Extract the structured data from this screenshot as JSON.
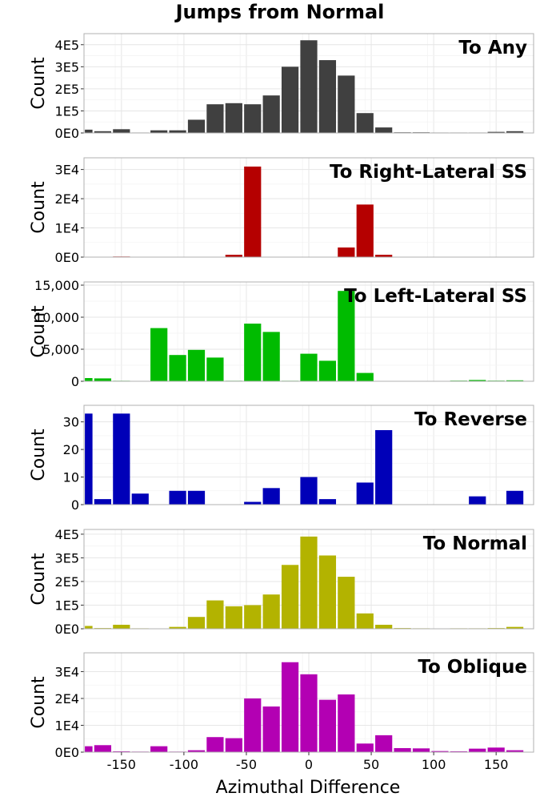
{
  "title": "Jumps from Normal",
  "xlabel": "Azimuthal Difference",
  "ylabel": "Count",
  "x_tick_labels": [
    "-150",
    "-100",
    "-50",
    "0",
    "50",
    "100",
    "150"
  ],
  "chart_data": [
    {
      "type": "bar",
      "title": "To Any",
      "color": "#404040",
      "xlim": [
        -180,
        180
      ],
      "ylim": [
        0,
        450000
      ],
      "bin_width": 15,
      "x": [
        -180,
        -165,
        -150,
        -135,
        -120,
        -105,
        -90,
        -75,
        -60,
        -45,
        -30,
        -15,
        0,
        15,
        30,
        45,
        60,
        75,
        90,
        105,
        120,
        135,
        150,
        165,
        180
      ],
      "values": [
        15000,
        8000,
        17000,
        2000,
        12000,
        12000,
        60000,
        130000,
        135000,
        130000,
        170000,
        300000,
        420000,
        330000,
        260000,
        90000,
        25000,
        3000,
        3000,
        2000,
        2000,
        2000,
        5000,
        8000,
        0
      ],
      "y_ticks": [
        0,
        100000,
        200000,
        300000,
        400000
      ],
      "y_tick_labels": [
        "0E0",
        "1E5",
        "2E5",
        "3E5",
        "4E5"
      ]
    },
    {
      "type": "bar",
      "title": "To Right-Lateral SS",
      "color": "#b50000",
      "xlim": [
        -180,
        180
      ],
      "ylim": [
        0,
        34000
      ],
      "bin_width": 15,
      "x": [
        -180,
        -165,
        -150,
        -135,
        -120,
        -105,
        -90,
        -75,
        -60,
        -45,
        -30,
        -15,
        0,
        15,
        30,
        45,
        60,
        75,
        90,
        105,
        120,
        135,
        150,
        165,
        180
      ],
      "values": [
        0,
        0,
        200,
        0,
        0,
        0,
        0,
        0,
        800,
        31000,
        0,
        0,
        0,
        0,
        3300,
        18000,
        800,
        0,
        0,
        0,
        100,
        0,
        0,
        0,
        0
      ],
      "y_ticks": [
        0,
        10000,
        20000,
        30000
      ],
      "y_tick_labels": [
        "0E0",
        "1E4",
        "2E4",
        "3E4"
      ]
    },
    {
      "type": "bar",
      "title": "To Left-Lateral SS",
      "color": "#00bb00",
      "xlim": [
        -180,
        180
      ],
      "ylim": [
        0,
        15500
      ],
      "bin_width": 15,
      "x": [
        -180,
        -165,
        -150,
        -135,
        -120,
        -105,
        -90,
        -75,
        -60,
        -45,
        -30,
        -15,
        0,
        15,
        30,
        45,
        60,
        75,
        90,
        105,
        120,
        135,
        150,
        165,
        180
      ],
      "values": [
        500,
        450,
        80,
        0,
        8300,
        4100,
        4900,
        3700,
        80,
        9000,
        7700,
        80,
        4300,
        3200,
        14100,
        1300,
        50,
        0,
        0,
        0,
        100,
        200,
        100,
        150,
        0
      ],
      "y_ticks": [
        0,
        5000,
        10000,
        15000
      ],
      "y_tick_labels": [
        "0",
        "5,000",
        "10,000",
        "15,000"
      ]
    },
    {
      "type": "bar",
      "title": "To Reverse",
      "color": "#0000b8",
      "xlim": [
        -180,
        180
      ],
      "ylim": [
        0,
        36
      ],
      "bin_width": 15,
      "x": [
        -180,
        -165,
        -150,
        -135,
        -120,
        -105,
        -90,
        -75,
        -60,
        -45,
        -30,
        -15,
        0,
        15,
        30,
        45,
        60,
        75,
        90,
        105,
        120,
        135,
        150,
        165,
        180
      ],
      "values": [
        33,
        2,
        33,
        4,
        0,
        5,
        5,
        0,
        0,
        1,
        6,
        0,
        10,
        2,
        0,
        8,
        27,
        0,
        0,
        0,
        0,
        3,
        0,
        5,
        0
      ],
      "y_ticks": [
        0,
        10,
        20,
        30
      ],
      "y_tick_labels": [
        "0",
        "10",
        "20",
        "30"
      ]
    },
    {
      "type": "bar",
      "title": "To Normal",
      "color": "#b3b300",
      "xlim": [
        -180,
        180
      ],
      "ylim": [
        0,
        420000
      ],
      "bin_width": 15,
      "x": [
        -180,
        -165,
        -150,
        -135,
        -120,
        -105,
        -90,
        -75,
        -60,
        -45,
        -30,
        -15,
        0,
        15,
        30,
        45,
        60,
        75,
        90,
        105,
        120,
        135,
        150,
        165,
        180
      ],
      "values": [
        12000,
        3000,
        17000,
        2000,
        0,
        8000,
        50000,
        120000,
        95000,
        100000,
        145000,
        270000,
        390000,
        310000,
        220000,
        65000,
        17000,
        3000,
        2000,
        0,
        2000,
        2000,
        3000,
        8000,
        0
      ],
      "y_ticks": [
        0,
        100000,
        200000,
        300000,
        400000
      ],
      "y_tick_labels": [
        "0E0",
        "1E5",
        "2E5",
        "3E5",
        "4E5"
      ]
    },
    {
      "type": "bar",
      "title": "To Oblique",
      "color": "#b300b3",
      "xlim": [
        -180,
        180
      ],
      "ylim": [
        0,
        37000
      ],
      "bin_width": 15,
      "x": [
        -180,
        -165,
        -150,
        -135,
        -120,
        -105,
        -90,
        -75,
        -60,
        -45,
        -30,
        -15,
        0,
        15,
        30,
        45,
        60,
        75,
        90,
        105,
        120,
        135,
        150,
        165,
        180
      ],
      "values": [
        2200,
        2600,
        300,
        200,
        2200,
        200,
        700,
        5600,
        5200,
        20000,
        17000,
        33500,
        29000,
        19500,
        21500,
        3200,
        6300,
        1500,
        1400,
        400,
        300,
        1300,
        1700,
        700,
        0
      ],
      "y_ticks": [
        0,
        10000,
        20000,
        30000
      ],
      "y_tick_labels": [
        "0E0",
        "1E4",
        "2E4",
        "3E4"
      ]
    }
  ]
}
